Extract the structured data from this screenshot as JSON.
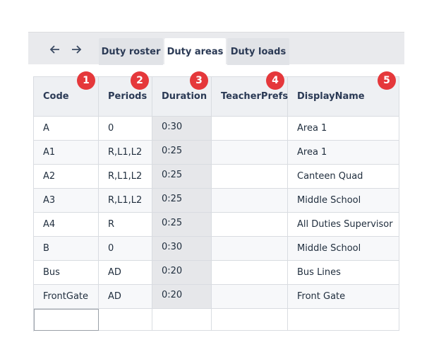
{
  "tabs": [
    "Duty roster",
    "Duty areas",
    "Duty loads"
  ],
  "active_tab": 1,
  "table": {
    "columns": [
      {
        "label": "Code",
        "badge": 1
      },
      {
        "label": "Periods",
        "badge": 2
      },
      {
        "label": "Duration",
        "badge": 3
      },
      {
        "label": "TeacherPrefs",
        "badge": 4
      },
      {
        "label": "DisplayName",
        "badge": 5
      }
    ],
    "rows": [
      {
        "code": "A",
        "periods": "0",
        "duration": "0:30",
        "display_name": "Area 1"
      },
      {
        "code": "A1",
        "periods": "R,L1,L2",
        "duration": "0:25",
        "display_name": "Area 1"
      },
      {
        "code": "A2",
        "periods": "R,L1,L2",
        "duration": "0:25",
        "display_name": "Canteen Quad"
      },
      {
        "code": "A3",
        "periods": "R,L1,L2",
        "duration": "0:25",
        "display_name": "Middle School"
      },
      {
        "code": "A4",
        "periods": "R",
        "duration": "0:25",
        "display_name": "All Duties Supervisor"
      },
      {
        "code": "B",
        "periods": "0",
        "duration": "0:30",
        "display_name": "Middle School"
      },
      {
        "code": "Bus",
        "periods": "AD",
        "duration": "0:20",
        "display_name": "Bus Lines"
      },
      {
        "code": "FrontGate",
        "periods": "AD",
        "duration": "0:20",
        "display_name": "Front Gate"
      }
    ]
  }
}
